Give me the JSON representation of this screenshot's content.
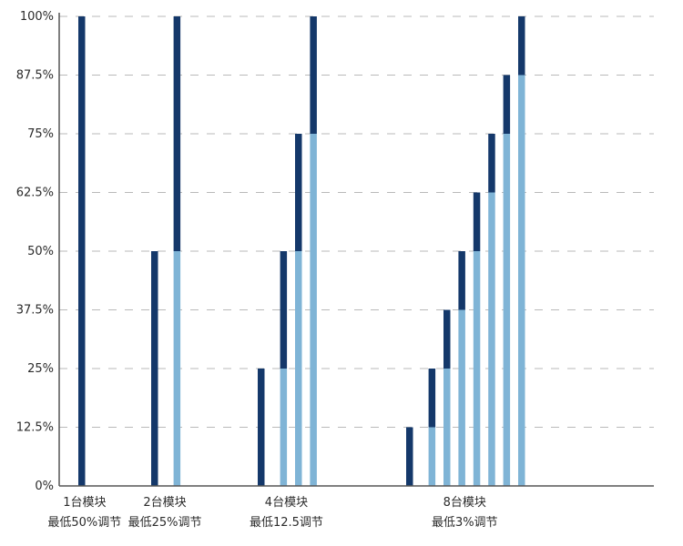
{
  "chart_data": {
    "type": "bar",
    "title": "",
    "xlabel": "",
    "ylabel": "",
    "ylim": [
      0,
      100
    ],
    "y_ticks": [
      "0%",
      "12.5%",
      "25%",
      "37.5%",
      "50%",
      "62.5%",
      "75%",
      "87.5%",
      "100%"
    ],
    "grid": true,
    "colors": {
      "dark": "#14386a",
      "light": "#7fb4d6",
      "axis": "#555555",
      "grid": "#b9b9b9"
    },
    "groups": [
      {
        "label_line1": "1台模块",
        "label_line2": "最低50%调节",
        "modules": 1
      },
      {
        "label_line1": "2台模块",
        "label_line2": "最低25%调节",
        "modules": 2
      },
      {
        "label_line1": "4台模块",
        "label_line2": "最低12.5调节",
        "modules": 4
      },
      {
        "label_line1": "8台模块",
        "label_line2": "最低3%调节",
        "modules": 8
      }
    ]
  }
}
